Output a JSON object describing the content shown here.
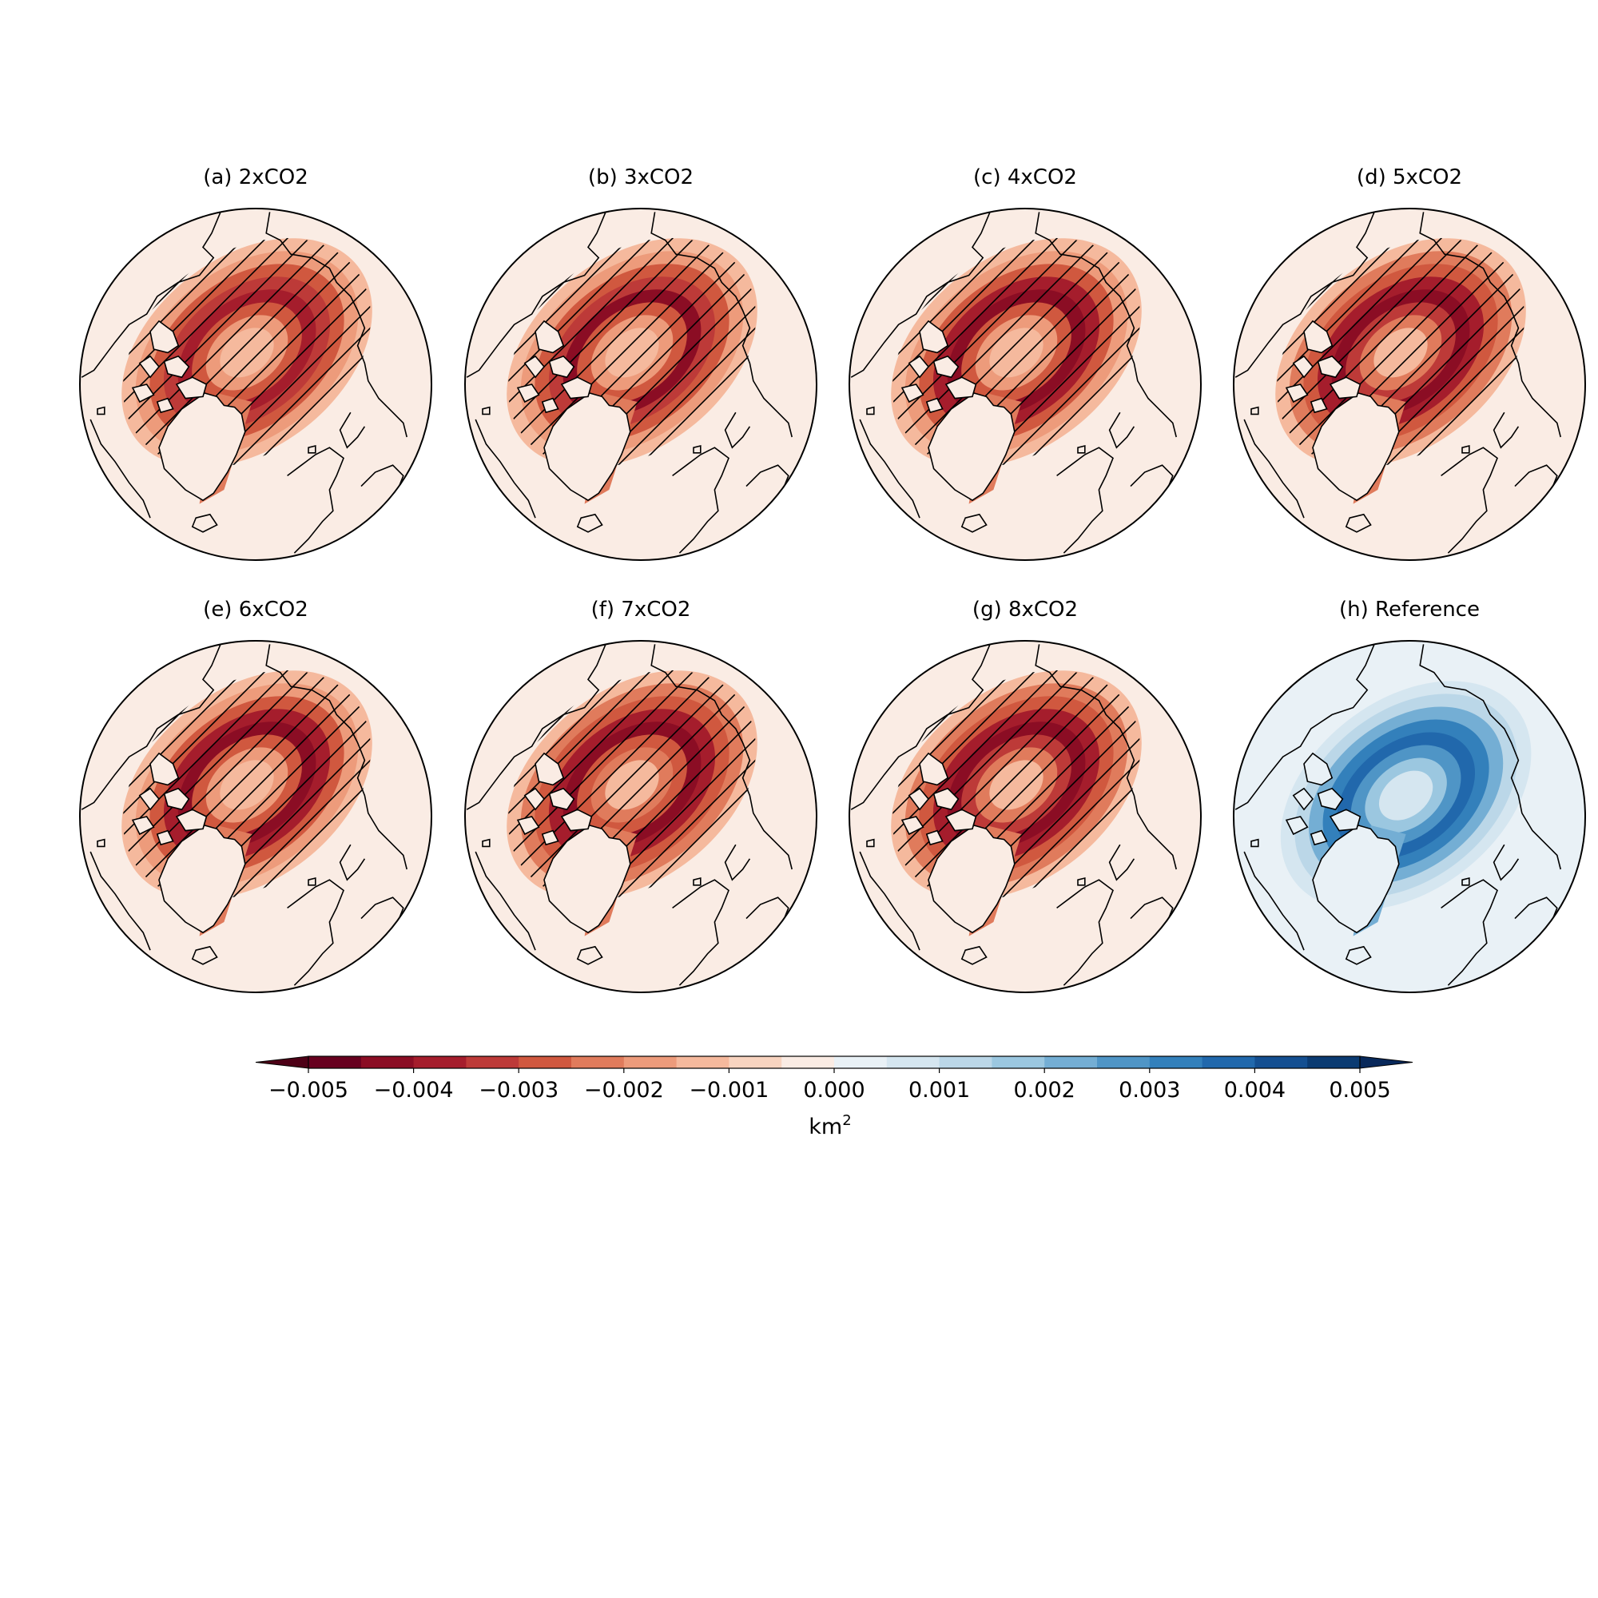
{
  "figure": {
    "panels": [
      {
        "id": "a",
        "title": "(a) 2xCO2",
        "field": "decrease",
        "intensity": 0.82,
        "hatched": true
      },
      {
        "id": "b",
        "title": "(b) 3xCO2",
        "field": "decrease",
        "intensity": 0.84,
        "hatched": true
      },
      {
        "id": "c",
        "title": "(c) 4xCO2",
        "field": "decrease",
        "intensity": 0.85,
        "hatched": true
      },
      {
        "id": "d",
        "title": "(d) 5xCO2",
        "field": "decrease",
        "intensity": 0.88,
        "hatched": true
      },
      {
        "id": "e",
        "title": "(e) 6xCO2",
        "field": "decrease",
        "intensity": 0.86,
        "hatched": true
      },
      {
        "id": "f",
        "title": "(f) 7xCO2",
        "field": "decrease",
        "intensity": 0.87,
        "hatched": true
      },
      {
        "id": "g",
        "title": "(g) 8xCO2",
        "field": "decrease",
        "intensity": 0.88,
        "hatched": true
      },
      {
        "id": "h",
        "title": "(h) Reference",
        "field": "reference",
        "intensity": 0.75,
        "hatched": false
      }
    ],
    "colorbar": {
      "label": "km",
      "label_superscript": "2",
      "ticks": [
        "−0.005",
        "−0.004",
        "−0.003",
        "−0.002",
        "−0.001",
        "0.000",
        "0.001",
        "0.002",
        "0.003",
        "0.004",
        "0.005"
      ],
      "min": -0.005,
      "max": 0.005,
      "extend": "both",
      "colors": [
        "#67001f",
        "#8b0d24",
        "#a51d2c",
        "#bd3a38",
        "#d0583f",
        "#e07b5c",
        "#ed9b7b",
        "#f5b99d",
        "#f8d4c0",
        "#faece4",
        "#e9f1f6",
        "#d5e6f0",
        "#bbd7e8",
        "#9bc7e0",
        "#74aed4",
        "#4f95c6",
        "#3380bb",
        "#2168ac",
        "#144f91",
        "#0b3b72"
      ],
      "under_color": "#4d0016",
      "over_color": "#08285a"
    }
  }
}
